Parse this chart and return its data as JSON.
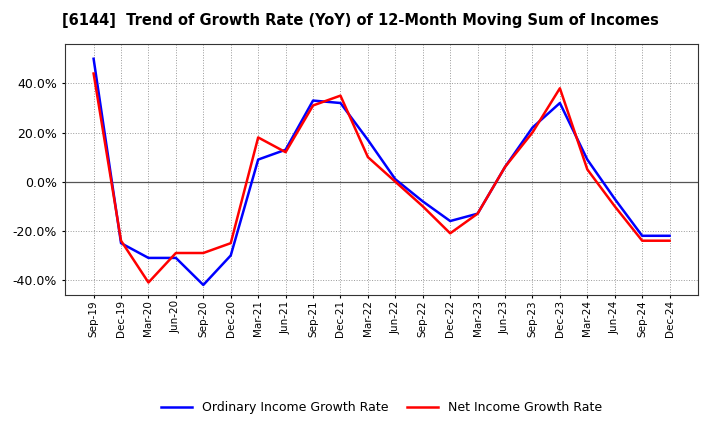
{
  "title": "[6144]  Trend of Growth Rate (YoY) of 12-Month Moving Sum of Incomes",
  "ylim": [
    -0.46,
    0.56
  ],
  "yticks": [
    -0.4,
    -0.2,
    0.0,
    0.2,
    0.4
  ],
  "legend_labels": [
    "Ordinary Income Growth Rate",
    "Net Income Growth Rate"
  ],
  "legend_colors": [
    "#0000FF",
    "#FF0000"
  ],
  "background_color": "#FFFFFF",
  "plot_bg_color": "#FFFFFF",
  "grid_color": "#999999",
  "x_labels": [
    "Sep-19",
    "Dec-19",
    "Mar-20",
    "Jun-20",
    "Sep-20",
    "Dec-20",
    "Mar-21",
    "Jun-21",
    "Sep-21",
    "Dec-21",
    "Mar-22",
    "Jun-22",
    "Sep-22",
    "Dec-22",
    "Mar-23",
    "Jun-23",
    "Sep-23",
    "Dec-23",
    "Mar-24",
    "Jun-24",
    "Sep-24",
    "Dec-24"
  ],
  "ordinary_income": [
    0.5,
    -0.25,
    -0.31,
    -0.31,
    -0.42,
    -0.3,
    0.09,
    0.13,
    0.33,
    0.32,
    0.17,
    0.01,
    -0.08,
    -0.16,
    -0.13,
    0.06,
    0.22,
    0.32,
    0.09,
    -0.07,
    -0.22,
    -0.22
  ],
  "net_income": [
    0.44,
    -0.24,
    -0.41,
    -0.29,
    -0.29,
    -0.25,
    0.18,
    0.12,
    0.31,
    0.35,
    0.1,
    0.0,
    -0.1,
    -0.21,
    -0.13,
    0.06,
    0.2,
    0.38,
    0.05,
    -0.1,
    -0.24,
    -0.24
  ]
}
